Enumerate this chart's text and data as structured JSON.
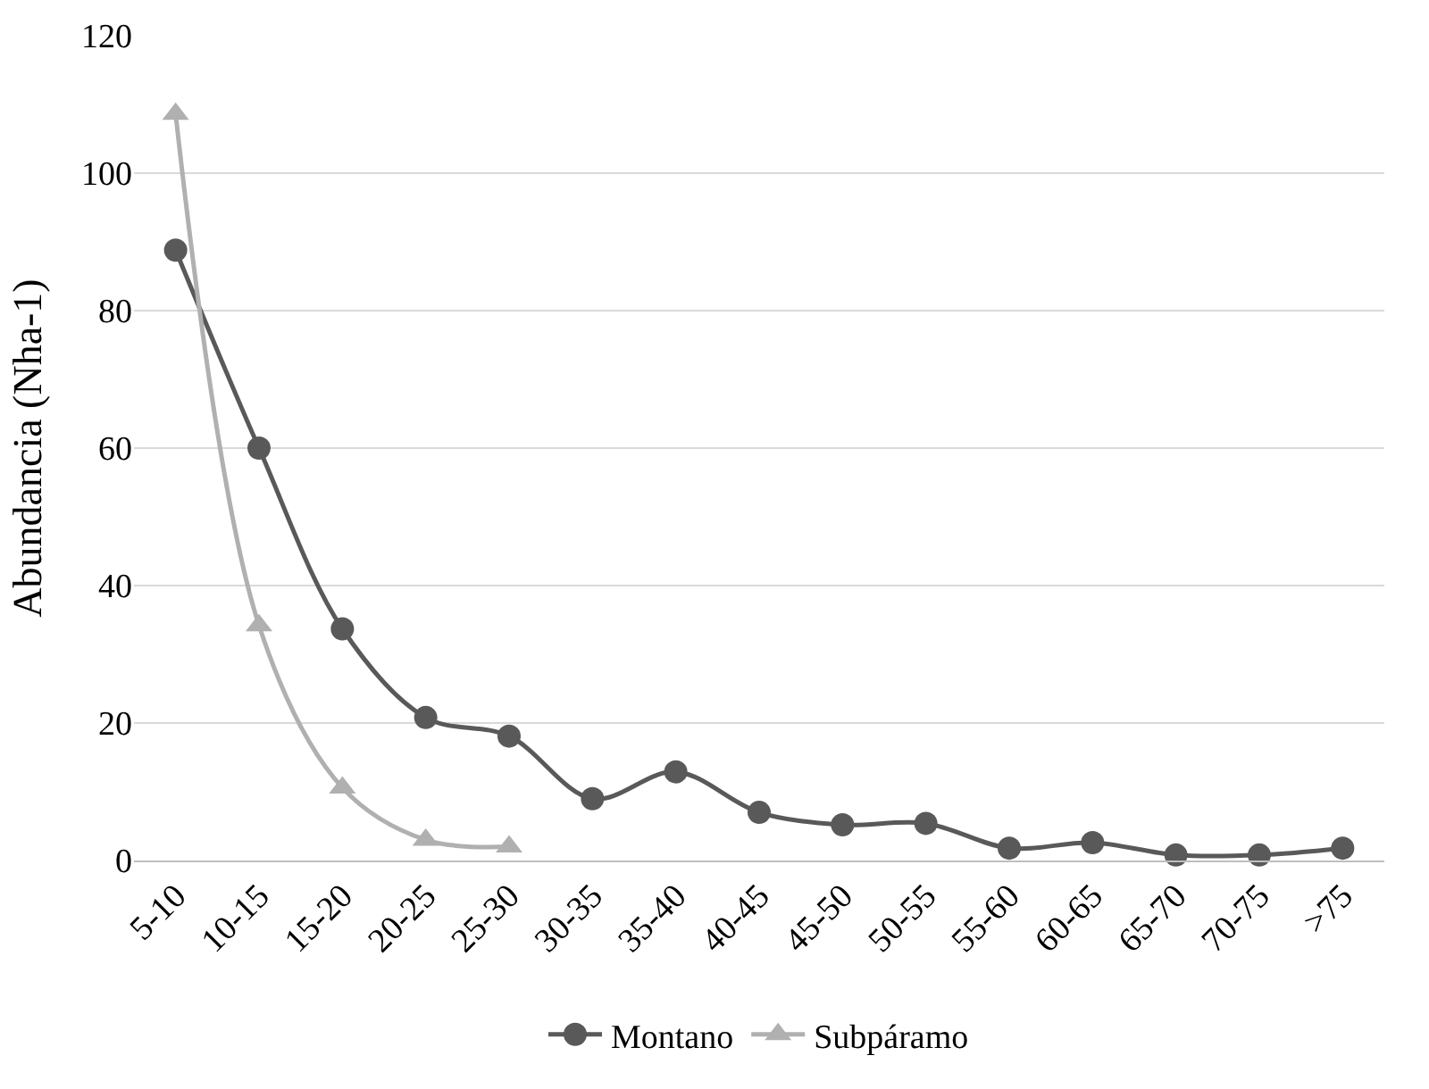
{
  "chart_data": {
    "type": "line",
    "ylabel": "Abundancia (Nha-1)",
    "categories": [
      "5-10",
      "10-15",
      "15-20",
      "20-25",
      "25-30",
      "30-35",
      "35-40",
      "40-45",
      "45-50",
      "50-55",
      "55-60",
      "60-65",
      "65-70",
      "70-75",
      ">75"
    ],
    "series": [
      {
        "name": "Montano",
        "color": "#595959",
        "marker": "circle",
        "values": [
          88.8,
          60,
          33.7,
          20.8,
          18.1,
          9,
          12.9,
          7,
          5.2,
          5.4,
          1.8,
          2.6,
          0.8,
          0.8,
          1.8
        ]
      },
      {
        "name": "Subpáramo",
        "color": "#b0b0b0",
        "marker": "triangle",
        "values": [
          108.6,
          34.2,
          10.6,
          3,
          2,
          null,
          null,
          null,
          null,
          null,
          null,
          null,
          null,
          null,
          null
        ]
      }
    ],
    "ylim": [
      0,
      120
    ],
    "yticks": [
      0,
      20,
      40,
      60,
      80,
      100,
      120
    ],
    "grid": "y",
    "legend": "bottom"
  }
}
